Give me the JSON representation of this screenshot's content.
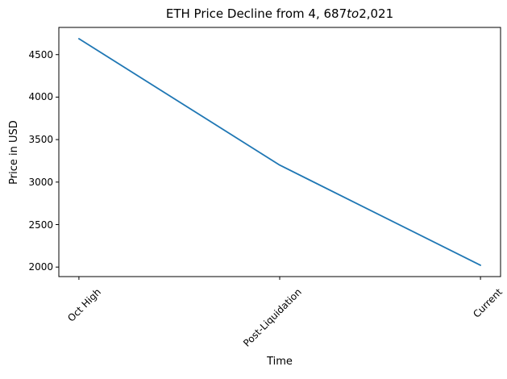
{
  "chart_data": {
    "type": "line",
    "title_rendered": "ETH Price Decline from 4, 687to2,021",
    "title_parts": {
      "prefix": "ETH Price Decline from 4, 687",
      "italic": "to",
      "suffix": "2,021"
    },
    "categories": [
      "Oct High",
      "Post-Liquidation",
      "Current"
    ],
    "values": [
      4687,
      3200,
      2021
    ],
    "xlabel": "Time",
    "ylabel": "Price in USD",
    "yticks": [
      2000,
      2500,
      3000,
      3500,
      4000,
      4500
    ],
    "ylim": [
      1888,
      4820
    ],
    "xlim": [
      -0.1,
      2.1
    ],
    "line_color": "#1f77b4",
    "axis_color": "#000000",
    "background_color": "#ffffff",
    "grid": false,
    "legend": null,
    "x_tick_rotation_deg": 45
  }
}
